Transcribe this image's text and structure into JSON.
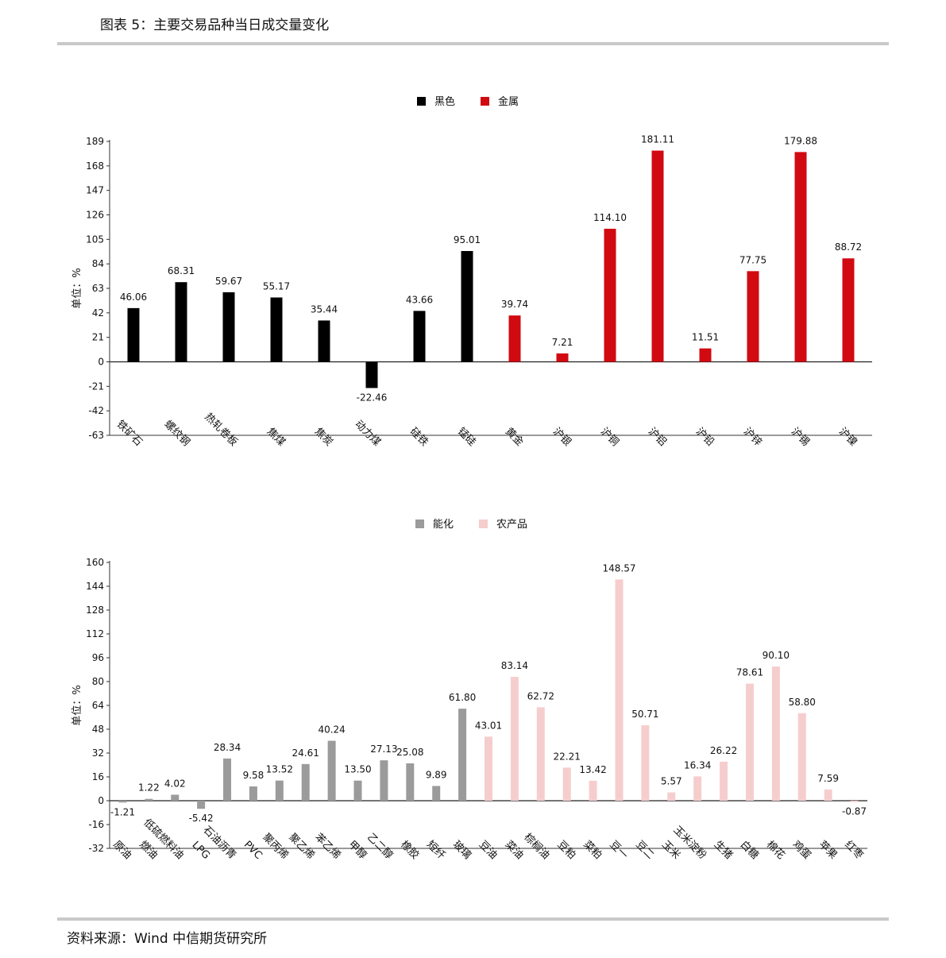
{
  "page": {
    "title": "图表 5：主要交易品种当日成交量变化",
    "source": "资料来源：Wind 中信期货研究所"
  },
  "chart_data": [
    {
      "type": "bar",
      "ylabel": "单位：%",
      "ylim": [
        -63,
        189
      ],
      "yticks": [
        189,
        168,
        147,
        126,
        105,
        84,
        63,
        42,
        21,
        0,
        -21,
        -42,
        -63
      ],
      "legend_position": "top-center",
      "categories": [
        "铁矿石",
        "螺纹钢",
        "热轧卷板",
        "焦煤",
        "焦炭",
        "动力煤",
        "硅铁",
        "锰硅",
        "黄金",
        "沪银",
        "沪铜",
        "沪铝",
        "沪铅",
        "沪锌",
        "沪锡",
        "沪镍"
      ],
      "series": [
        {
          "name": "黑色",
          "color": "#000000",
          "values": [
            46.06,
            68.31,
            59.67,
            55.17,
            35.44,
            -22.46,
            43.66,
            95.01,
            null,
            null,
            null,
            null,
            null,
            null,
            null,
            null
          ],
          "labels": [
            "46.06",
            "68.31",
            "59.67",
            "55.17",
            "35.44",
            "-22.46",
            "43.66",
            "95.01",
            null,
            null,
            null,
            null,
            null,
            null,
            null,
            null
          ]
        },
        {
          "name": "金属",
          "color": "#d10a11",
          "values": [
            null,
            null,
            null,
            null,
            null,
            null,
            null,
            null,
            39.74,
            7.21,
            114.1,
            181.11,
            11.51,
            77.75,
            179.88,
            88.72
          ],
          "labels": [
            null,
            null,
            null,
            null,
            null,
            null,
            null,
            null,
            "39.74",
            "7.21",
            "114.10",
            "181.11",
            "11.51",
            "77.75",
            "179.88",
            "88.72"
          ]
        }
      ]
    },
    {
      "type": "bar",
      "ylabel": "单位：%",
      "ylim": [
        -32,
        160
      ],
      "yticks": [
        160,
        144,
        128,
        112,
        96,
        80,
        64,
        48,
        32,
        16,
        0,
        -16,
        -32
      ],
      "legend_position": "top-center",
      "categories": [
        "原油",
        "燃油",
        "低硫燃料油",
        "LPG",
        "石油沥青",
        "PVC",
        "聚丙烯",
        "聚乙烯",
        "苯乙烯",
        "甲醇",
        "乙二醇",
        "橡胶",
        "短纤",
        "玻璃",
        "豆油",
        "菜油",
        "棕榈油",
        "豆粕",
        "菜粕",
        "豆一",
        "豆二",
        "玉米",
        "玉米淀粉",
        "生猪",
        "白糖",
        "棉花",
        "鸡蛋",
        "苹果",
        "红枣"
      ],
      "series": [
        {
          "name": "能化",
          "color": "#9b9b9b",
          "values": [
            -1.21,
            1.22,
            4.02,
            -5.42,
            28.34,
            9.58,
            13.52,
            24.61,
            40.24,
            13.5,
            27.13,
            25.08,
            9.89,
            61.8,
            null,
            null,
            null,
            null,
            null,
            null,
            null,
            null,
            null,
            null,
            null,
            null,
            null,
            null,
            null
          ],
          "labels": [
            "-1.21",
            "1.22",
            "4.02",
            "-5.42",
            "28.34",
            "9.58",
            "13.52",
            "24.61",
            "40.24",
            "13.50",
            "27.13",
            "25.08",
            "9.89",
            "61.80",
            null,
            null,
            null,
            null,
            null,
            null,
            null,
            null,
            null,
            null,
            null,
            null,
            null,
            null,
            null
          ]
        },
        {
          "name": "农产品",
          "color": "#f6cdcd",
          "values": [
            null,
            null,
            null,
            null,
            null,
            null,
            null,
            null,
            null,
            null,
            null,
            null,
            null,
            null,
            43.01,
            83.14,
            62.72,
            22.21,
            13.42,
            148.57,
            50.71,
            5.57,
            16.34,
            26.22,
            78.61,
            90.1,
            58.8,
            7.59,
            -0.87
          ],
          "labels": [
            null,
            null,
            null,
            null,
            null,
            null,
            null,
            null,
            null,
            null,
            null,
            null,
            null,
            null,
            "43.01",
            "83.14",
            "62.72",
            "22.21",
            "13.42",
            "148.57",
            "50.71",
            "5.57",
            "16.34",
            "26.22",
            "78.61",
            "90.10",
            "58.80",
            "7.59",
            "-0.87"
          ]
        }
      ]
    }
  ]
}
